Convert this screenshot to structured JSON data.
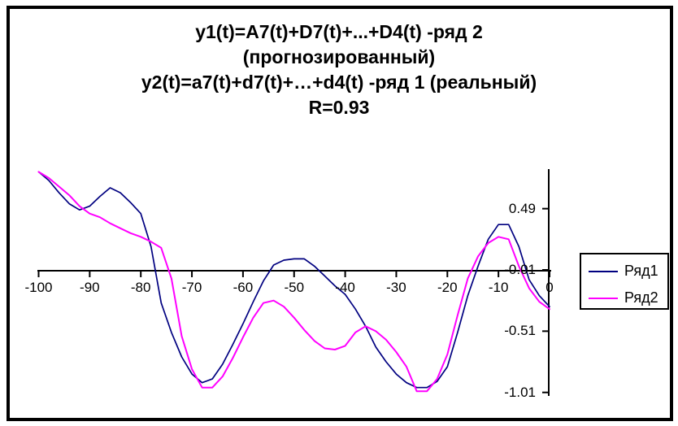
{
  "chart": {
    "title_lines": [
      "y1(t)=A7(t)+D7(t)+...+D4(t) -ряд 2",
      "(прогнозированный)",
      "y2(t)=a7(t)+d7(t)+…+d4(t) -ряд 1 (реальный)",
      "R=0.93"
    ]
  },
  "chart_data": {
    "type": "line",
    "title": "y1(t)=A7(t)+D7(t)+...+D4(t) -ряд 2 (прогнозированный) y2(t)=a7(t)+d7(t)+…+d4(t) -ряд 1 (реальный) R=0.93",
    "x": [
      -100,
      -98,
      -96,
      -94,
      -92,
      -90,
      -88,
      -86,
      -84,
      -82,
      -80,
      -78,
      -76,
      -74,
      -72,
      -70,
      -68,
      -66,
      -64,
      -62,
      -60,
      -58,
      -56,
      -54,
      -52,
      -50,
      -48,
      -46,
      -44,
      -42,
      -40,
      -38,
      -36,
      -34,
      -32,
      -30,
      -28,
      -26,
      -24,
      -22,
      -20,
      -18,
      -16,
      -14,
      -12,
      -10,
      -8,
      -6,
      -4,
      -2,
      0
    ],
    "series": [
      {
        "name": "Ряд1",
        "color": "#000080",
        "values": [
          0.79,
          0.72,
          0.62,
          0.53,
          0.48,
          0.51,
          0.59,
          0.66,
          0.62,
          0.54,
          0.45,
          0.18,
          -0.28,
          -0.52,
          -0.72,
          -0.86,
          -0.93,
          -0.9,
          -0.78,
          -0.62,
          -0.45,
          -0.27,
          -0.1,
          0.03,
          0.07,
          0.08,
          0.08,
          0.02,
          -0.06,
          -0.14,
          -0.21,
          -0.33,
          -0.47,
          -0.64,
          -0.76,
          -0.86,
          -0.93,
          -0.97,
          -0.97,
          -0.92,
          -0.8,
          -0.52,
          -0.22,
          0.02,
          0.24,
          0.36,
          0.36,
          0.18,
          -0.09,
          -0.22,
          -0.31
        ]
      },
      {
        "name": "Ряд2",
        "color": "#FF00FF",
        "values": [
          0.79,
          0.74,
          0.67,
          0.6,
          0.51,
          0.45,
          0.42,
          0.37,
          0.33,
          0.29,
          0.26,
          0.22,
          0.17,
          -0.08,
          -0.55,
          -0.82,
          -0.97,
          -0.97,
          -0.88,
          -0.73,
          -0.56,
          -0.4,
          -0.28,
          -0.26,
          -0.31,
          -0.4,
          -0.5,
          -0.59,
          -0.65,
          -0.66,
          -0.63,
          -0.52,
          -0.47,
          -0.51,
          -0.58,
          -0.68,
          -0.8,
          -1.0,
          -1.0,
          -0.9,
          -0.7,
          -0.38,
          -0.08,
          0.1,
          0.21,
          0.26,
          0.24,
          0.02,
          -0.16,
          -0.27,
          -0.33
        ]
      }
    ],
    "x_ticks": [
      -100,
      -90,
      -80,
      -70,
      -60,
      -50,
      -40,
      -30,
      -20,
      -10,
      0
    ],
    "x_tick_labels": [
      "-100",
      "-90",
      "-80",
      "-70",
      "-60",
      "-50",
      "-40",
      "-30",
      "-20",
      "-10",
      "0"
    ],
    "y_ticks": [
      0.49,
      -0.01,
      -0.51,
      -1.01
    ],
    "y_tick_labels": [
      "0.49",
      "-0.01",
      "-0.51",
      "-1.01"
    ],
    "xlim": [
      -100,
      0
    ],
    "ylim": [
      -1.04,
      0.81
    ],
    "axis_crosses_at": -0.01,
    "grid": false,
    "legend": {
      "position": "right",
      "border": true,
      "entries": [
        {
          "label": "Ряд1",
          "color": "#000080"
        },
        {
          "label": "Ряд2",
          "color": "#FF00FF"
        }
      ]
    }
  }
}
